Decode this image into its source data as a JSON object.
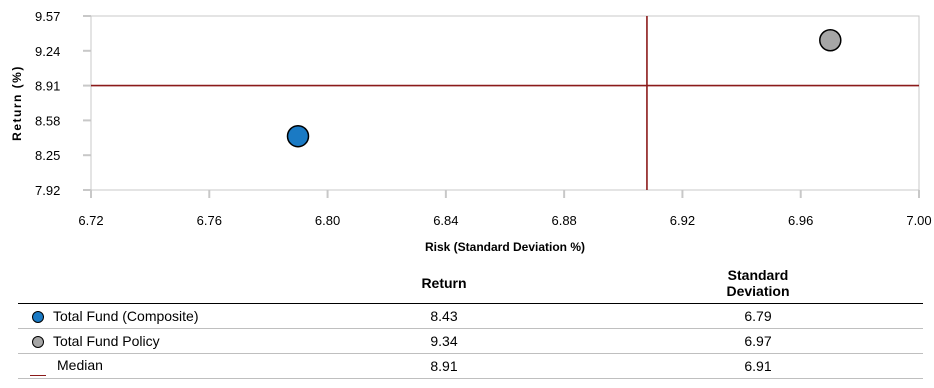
{
  "chart_data": {
    "type": "scatter",
    "xlabel": "Risk (Standard Deviation %)",
    "ylabel": "Return (%)",
    "xlim": [
      6.72,
      7.0
    ],
    "ylim": [
      7.92,
      9.57
    ],
    "x_ticks": [
      "6.72",
      "6.76",
      "6.80",
      "6.84",
      "6.88",
      "6.92",
      "6.96",
      "7.00"
    ],
    "y_ticks": [
      "7.92",
      "8.25",
      "8.58",
      "8.91",
      "9.24",
      "9.57"
    ],
    "series": [
      {
        "name": "Total Fund (Composite)",
        "x": 6.79,
        "y": 8.43,
        "color": "#1a7ac4"
      },
      {
        "name": "Total Fund Policy",
        "x": 6.97,
        "y": 9.34,
        "color": "#a6a6a6"
      }
    ],
    "median": {
      "name": "Median",
      "x": 6.908,
      "y": 8.91,
      "color": "#8b1a1a"
    },
    "grid": false
  },
  "table": {
    "columns": [
      "Return",
      "Standard\nDeviation"
    ],
    "rows": [
      {
        "label": "Total Fund (Composite)",
        "return": "8.43",
        "std": "6.79"
      },
      {
        "label": "Total Fund Policy",
        "return": "9.34",
        "std": "6.97"
      },
      {
        "label": "Median",
        "return": "8.91",
        "std": "6.91"
      }
    ]
  }
}
